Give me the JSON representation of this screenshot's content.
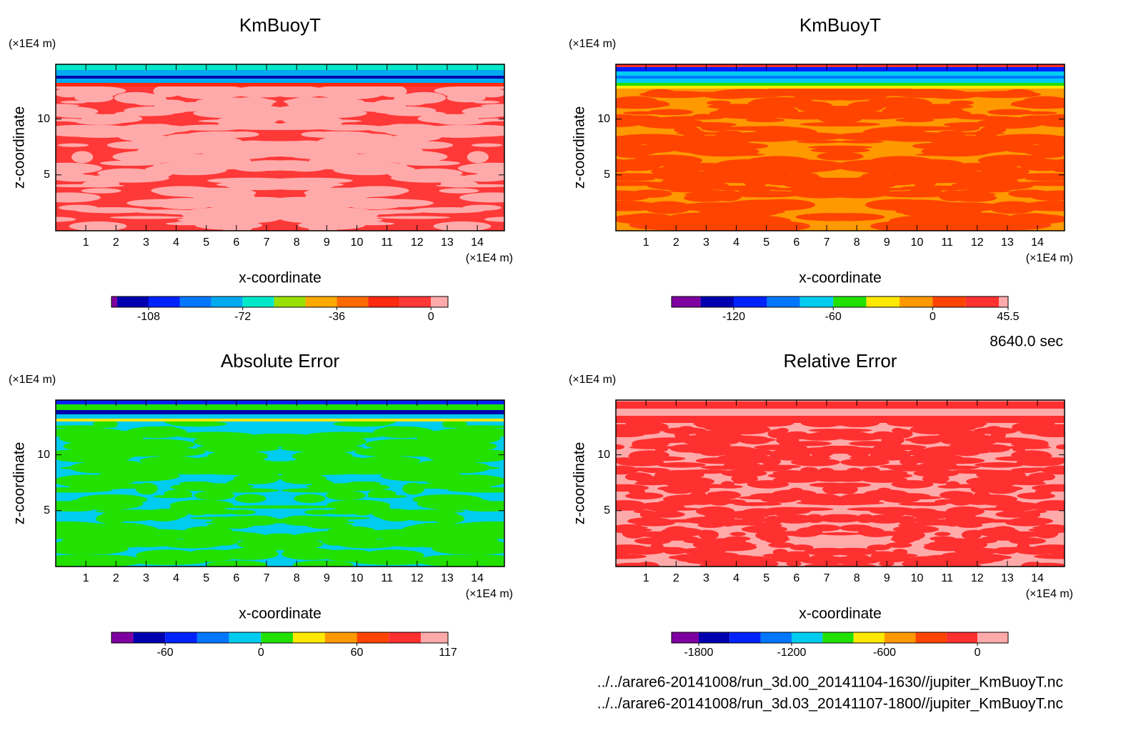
{
  "chart_data": [
    {
      "type": "contour",
      "title": "KmBuoyT",
      "x_label": "x-coordinate",
      "y_label": "z-coordinate",
      "x_unit": "(×1E4 m)",
      "y_unit": "(×1E4 m)",
      "xlim": [
        0,
        14.9
      ],
      "xticks": [
        1,
        2,
        3,
        4,
        5,
        6,
        7,
        8,
        9,
        10,
        11,
        12,
        13,
        14
      ],
      "ylim": [
        0,
        14.9
      ],
      "yticks": [
        5,
        10
      ],
      "colorbar": {
        "lim": [
          -122.2,
          6.5
        ],
        "ticks": [
          -108,
          -72,
          -36,
          0
        ],
        "levels": [
          -120,
          -108,
          -96,
          -84,
          -72,
          -60,
          -48,
          -36,
          -24,
          -12,
          0
        ],
        "colors": [
          "#7f00a0",
          "#0000b0",
          "#0022ff",
          "#0077ff",
          "#00aaf0",
          "#00e8c8",
          "#99e000",
          "#ffaa00",
          "#ff6a00",
          "#ff2a10",
          "#ff3838",
          "#ffaaaa"
        ]
      }
    },
    {
      "type": "contour",
      "title": "KmBuoyT",
      "x_label": "x-coordinate",
      "y_label": "z-coordinate",
      "x_unit": "(×1E4 m)",
      "y_unit": "(×1E4 m)",
      "xlim": [
        0,
        14.9
      ],
      "xticks": [
        1,
        2,
        3,
        4,
        5,
        6,
        7,
        8,
        9,
        10,
        11,
        12,
        13,
        14
      ],
      "ylim": [
        0,
        14.9
      ],
      "yticks": [
        5,
        10
      ],
      "colorbar": {
        "lim": [
          -157.5,
          45.5
        ],
        "ticks": [
          -120,
          -60,
          0,
          45.5
        ],
        "levels": [
          -140,
          -120,
          -100,
          -80,
          -60,
          -40,
          -20,
          0,
          20,
          40
        ],
        "colors": [
          "#7f00a0",
          "#0000b0",
          "#0022ff",
          "#0077ff",
          "#00ccf0",
          "#22e000",
          "#ffe800",
          "#ff9900",
          "#ff4400",
          "#ff3030",
          "#ffaaaa"
        ]
      }
    },
    {
      "type": "contour",
      "title": "Absolute Error",
      "x_label": "x-coordinate",
      "y_label": "z-coordinate",
      "x_unit": "(×1E4 m)",
      "y_unit": "(×1E4 m)",
      "xlim": [
        0,
        14.9
      ],
      "xticks": [
        1,
        2,
        3,
        4,
        5,
        6,
        7,
        8,
        9,
        10,
        11,
        12,
        13,
        14
      ],
      "ylim": [
        0,
        14.9
      ],
      "yticks": [
        5,
        10
      ],
      "colorbar": {
        "lim": [
          -93.6,
          117
        ],
        "ticks": [
          -60,
          0,
          60,
          117
        ],
        "levels": [
          -80,
          -60,
          -40,
          -20,
          0,
          20,
          40,
          60,
          80,
          100
        ],
        "colors": [
          "#7f00a0",
          "#0000b0",
          "#0022ff",
          "#0077ff",
          "#00ccf0",
          "#22e000",
          "#ffe800",
          "#ff9900",
          "#ff4400",
          "#ff3030",
          "#ffaaaa"
        ]
      }
    },
    {
      "type": "contour",
      "title": "Relative Error",
      "x_label": "x-coordinate",
      "y_label": "z-coordinate",
      "x_unit": "(×1E4 m)",
      "y_unit": "(×1E4 m)",
      "xlim": [
        0,
        14.9
      ],
      "xticks": [
        1,
        2,
        3,
        4,
        5,
        6,
        7,
        8,
        9,
        10,
        11,
        12,
        13,
        14
      ],
      "ylim": [
        0,
        14.9
      ],
      "yticks": [
        5,
        10
      ],
      "colorbar": {
        "lim": [
          -1975,
          198
        ],
        "ticks": [
          -1800,
          -1200,
          -600,
          0
        ],
        "levels": [
          -1800,
          -1600,
          -1400,
          -1200,
          -1000,
          -800,
          -600,
          -400,
          -200,
          0
        ],
        "colors": [
          "#7f00a0",
          "#0000b0",
          "#0022ff",
          "#0077ff",
          "#00ccf0",
          "#22e000",
          "#ffe800",
          "#ff9900",
          "#ff4400",
          "#ff3030",
          "#ffaaaa"
        ]
      }
    }
  ],
  "time": "8640.0 sec",
  "files": [
    "../../arare6-20141008/run_3d.00_20141104-1630//jupiter_KmBuoyT.nc",
    "../../arare6-20141008/run_3d.03_20141107-1800//jupiter_KmBuoyT.nc"
  ]
}
